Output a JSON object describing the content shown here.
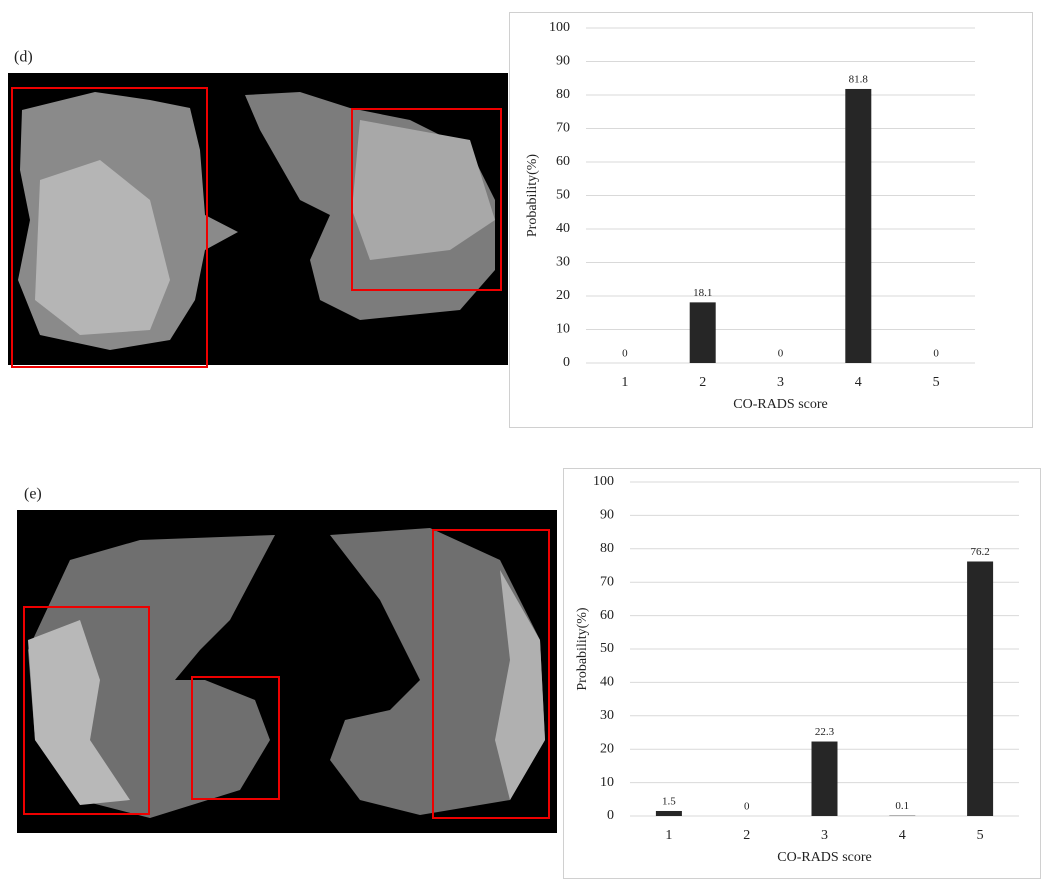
{
  "chart_data": [
    {
      "type": "bar",
      "label": "(d)",
      "x_label": "CO-RADS score",
      "y_label": "Probability(%)",
      "categories": [
        "1",
        "2",
        "3",
        "4",
        "5"
      ],
      "values": [
        0,
        18.1,
        0,
        81.8,
        0
      ],
      "color": "#262626",
      "ylim": [
        0,
        100
      ],
      "yticks": [
        0,
        10,
        20,
        30,
        40,
        50,
        60,
        70,
        80,
        90,
        100
      ],
      "grid": true
    },
    {
      "type": "bar",
      "label": "(e)",
      "x_label": "CO-RADS score",
      "y_label": "Probability(%)",
      "categories": [
        "1",
        "2",
        "3",
        "4",
        "5"
      ],
      "values": [
        1.5,
        0,
        22.3,
        0.1,
        76.2
      ],
      "color": "#262626",
      "ylim": [
        0,
        100
      ],
      "yticks": [
        0,
        10,
        20,
        30,
        40,
        50,
        60,
        70,
        80,
        90,
        100
      ],
      "grid": true
    }
  ]
}
